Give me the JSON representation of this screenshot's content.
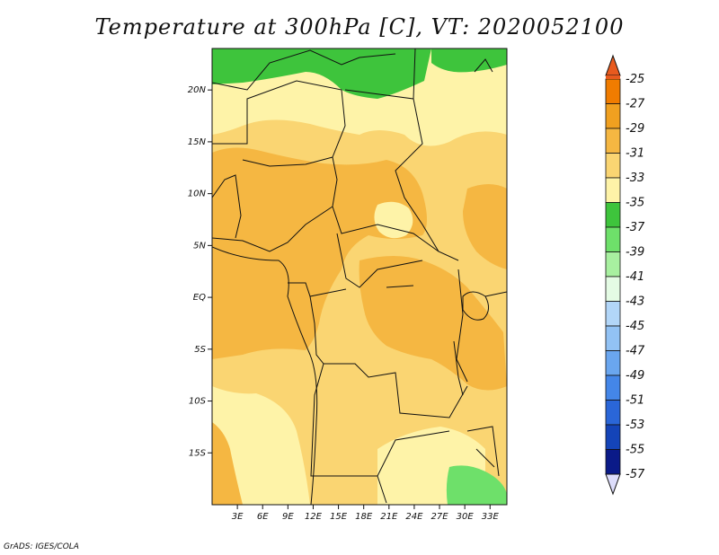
{
  "title": "Temperature at 300hPa [C], VT: 2020052100",
  "credit": "GrADS: IGES/COLA",
  "map": {
    "lon_range": [
      0,
      35
    ],
    "lat_range": [
      -20,
      24
    ],
    "lon_ticks": [
      {
        "value": 3,
        "label": "3E"
      },
      {
        "value": 6,
        "label": "6E"
      },
      {
        "value": 9,
        "label": "9E"
      },
      {
        "value": 12,
        "label": "12E"
      },
      {
        "value": 15,
        "label": "15E"
      },
      {
        "value": 18,
        "label": "18E"
      },
      {
        "value": 21,
        "label": "21E"
      },
      {
        "value": 24,
        "label": "24E"
      },
      {
        "value": 27,
        "label": "27E"
      },
      {
        "value": 30,
        "label": "30E"
      },
      {
        "value": 33,
        "label": "33E"
      }
    ],
    "lat_ticks": [
      {
        "value": 20,
        "label": "20N"
      },
      {
        "value": 15,
        "label": "15N"
      },
      {
        "value": 10,
        "label": "10N"
      },
      {
        "value": 5,
        "label": "5N"
      },
      {
        "value": 0,
        "label": "EQ"
      },
      {
        "value": -5,
        "label": "5S"
      },
      {
        "value": -10,
        "label": "10S"
      },
      {
        "value": -15,
        "label": "15S"
      }
    ]
  },
  "colorbar": {
    "levels": [
      "-25",
      "-27",
      "-29",
      "-31",
      "-33",
      "-35",
      "-37",
      "-39",
      "-41",
      "-43",
      "-45",
      "-47",
      "-49",
      "-51",
      "-53",
      "-55",
      "-57"
    ],
    "colors": [
      "#e85a1e",
      "#f07c00",
      "#f0a020",
      "#f5b742",
      "#fad572",
      "#fef3a8",
      "#3ec43c",
      "#6ee06a",
      "#a8f0a0",
      "#e4fbe4",
      "#b2d6f8",
      "#92c2f4",
      "#6aa6ef",
      "#4486e8",
      "#2a66d8",
      "#1444b8",
      "#0a1a88",
      "#ddddfb"
    ]
  },
  "palette": {
    "deep": "#f5b742",
    "mid": "#fad572",
    "light": "#fef3a8",
    "green": "#3ec43c",
    "lightgreen": "#6ee06a",
    "warm": "#f0a020"
  }
}
